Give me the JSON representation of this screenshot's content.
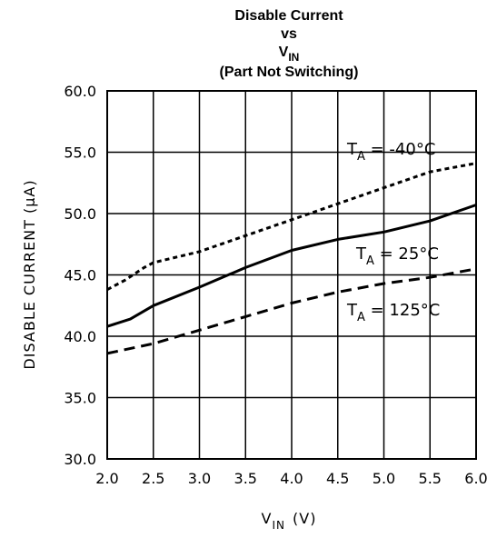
{
  "chart_data": {
    "type": "line",
    "title_lines": [
      "Disable Current",
      "vs",
      "V",
      "(Part Not Switching)"
    ],
    "title_sub": "IN",
    "xlabel": "V",
    "xlabel_sub": "IN",
    "xlabel_unit": "(V)",
    "ylabel": "DISABLE CURRENT (μA)",
    "xlim": [
      2.0,
      6.0
    ],
    "ylim": [
      30.0,
      60.0
    ],
    "xticks": [
      "2.0",
      "2.5",
      "3.0",
      "3.5",
      "4.0",
      "4.5",
      "5.0",
      "5.5",
      "6.0"
    ],
    "yticks": [
      "30.0",
      "35.0",
      "40.0",
      "45.0",
      "50.0",
      "55.0",
      "60.0"
    ],
    "grid": true,
    "series": [
      {
        "name": "T_A = -40°C",
        "label_prefix": "T",
        "label_sub": "A",
        "label_suffix": " = -40°C",
        "style": "dotted",
        "x": [
          2.0,
          2.2,
          2.4,
          2.5,
          3.0,
          3.5,
          4.0,
          4.5,
          5.0,
          5.5,
          6.0
        ],
        "y": [
          43.8,
          44.6,
          45.6,
          46.0,
          46.9,
          48.2,
          49.5,
          50.8,
          52.1,
          53.4,
          54.1
        ]
      },
      {
        "name": "T_A = 25°C",
        "label_prefix": "T",
        "label_sub": "A",
        "label_suffix": " = 25°C",
        "style": "solid",
        "x": [
          2.0,
          2.25,
          2.5,
          3.0,
          3.5,
          4.0,
          4.5,
          5.0,
          5.5,
          6.0
        ],
        "y": [
          40.8,
          41.4,
          42.5,
          44.0,
          45.6,
          47.0,
          47.9,
          48.5,
          49.4,
          50.7
        ]
      },
      {
        "name": "T_A = 125°C",
        "label_prefix": "T",
        "label_sub": "A",
        "label_suffix": " = 125°C",
        "style": "dashed",
        "x": [
          2.0,
          2.5,
          3.0,
          3.5,
          4.0,
          4.5,
          5.0,
          5.5,
          6.0
        ],
        "y": [
          38.6,
          39.4,
          40.5,
          41.6,
          42.7,
          43.6,
          44.3,
          44.8,
          45.5
        ]
      }
    ]
  }
}
